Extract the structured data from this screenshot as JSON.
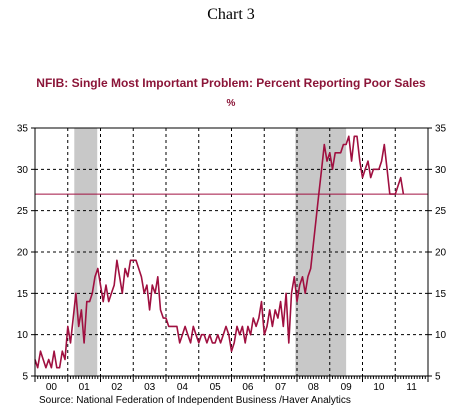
{
  "page": {
    "heading": "Chart 3"
  },
  "chart_data": {
    "type": "line",
    "title": "NFIB: Single Most Important Problem: Percent Reporting Poor Sales",
    "unit": "%",
    "source": "Source:  National Federation of Independent Business /Haver Analytics",
    "xlabel": "",
    "ylabel": "",
    "x_tick_labels": [
      "00",
      "01",
      "02",
      "03",
      "04",
      "05",
      "06",
      "07",
      "08",
      "09",
      "10",
      "11"
    ],
    "xlim": [
      2000.0,
      2012.0
    ],
    "ylim": [
      5,
      35
    ],
    "y_ticks": [
      5,
      10,
      15,
      20,
      25,
      30,
      35
    ],
    "grid": "dashed",
    "reference_line": 27,
    "recession_shading": [
      [
        2001.2,
        2001.9
      ],
      [
        2007.95,
        2009.5
      ]
    ],
    "colors": {
      "line": "#a01040",
      "shading": "#c8c8c8",
      "reference": "#a01040"
    },
    "series": [
      {
        "x": [
          2000.0,
          2000.083,
          2000.167,
          2000.25,
          2000.333,
          2000.417,
          2000.5,
          2000.583,
          2000.667,
          2000.75,
          2000.833,
          2000.917,
          2001.0,
          2001.083,
          2001.167,
          2001.25,
          2001.333,
          2001.417,
          2001.5,
          2001.583,
          2001.667,
          2001.75,
          2001.833,
          2001.917,
          2002.0,
          2002.083,
          2002.167,
          2002.25,
          2002.333,
          2002.417,
          2002.5,
          2002.583,
          2002.667,
          2002.75,
          2002.833,
          2002.917,
          2003.0,
          2003.083,
          2003.167,
          2003.25,
          2003.333,
          2003.417,
          2003.5,
          2003.583,
          2003.667,
          2003.75,
          2003.833,
          2003.917,
          2004.0,
          2004.083,
          2004.167,
          2004.25,
          2004.333,
          2004.417,
          2004.5,
          2004.583,
          2004.667,
          2004.75,
          2004.833,
          2004.917,
          2005.0,
          2005.083,
          2005.167,
          2005.25,
          2005.333,
          2005.417,
          2005.5,
          2005.583,
          2005.667,
          2005.75,
          2005.833,
          2005.917,
          2006.0,
          2006.083,
          2006.167,
          2006.25,
          2006.333,
          2006.417,
          2006.5,
          2006.583,
          2006.667,
          2006.75,
          2006.833,
          2006.917,
          2007.0,
          2007.083,
          2007.167,
          2007.25,
          2007.333,
          2007.417,
          2007.5,
          2007.583,
          2007.667,
          2007.75,
          2007.833,
          2007.917,
          2008.0,
          2008.083,
          2008.167,
          2008.25,
          2008.333,
          2008.417,
          2008.5,
          2008.583,
          2008.667,
          2008.75,
          2008.833,
          2008.917,
          2009.0,
          2009.083,
          2009.167,
          2009.25,
          2009.333,
          2009.417,
          2009.5,
          2009.583,
          2009.667,
          2009.75,
          2009.833,
          2009.917,
          2010.0,
          2010.083,
          2010.167,
          2010.25,
          2010.333,
          2010.417,
          2010.5,
          2010.583,
          2010.667,
          2010.75,
          2010.833,
          2010.917,
          2011.0,
          2011.083,
          2011.167,
          2011.25
        ],
        "values": [
          7,
          6,
          8,
          7,
          6,
          7,
          6,
          8,
          6,
          6,
          8,
          7,
          11,
          9,
          12,
          15,
          11,
          13,
          9,
          14,
          14,
          15,
          17,
          18,
          16,
          14,
          16,
          14,
          15,
          16,
          19,
          17,
          15,
          18,
          17,
          19,
          19,
          19,
          18,
          17,
          15,
          16,
          13,
          16,
          15,
          17,
          13,
          12,
          12,
          11,
          11,
          11,
          11,
          9,
          10,
          11,
          10,
          9,
          11,
          10,
          9,
          10,
          10,
          9,
          10,
          9,
          9,
          10,
          9,
          10,
          11,
          10,
          8,
          9,
          11,
          10,
          11,
          9,
          11,
          10,
          12,
          11,
          12,
          14,
          10,
          11,
          13,
          11,
          13,
          12,
          14,
          11,
          15,
          9,
          15,
          17,
          14,
          16,
          17,
          15,
          17,
          18,
          21,
          24,
          27,
          30,
          33,
          31,
          32,
          30,
          32,
          32,
          32,
          33,
          33,
          34,
          31,
          34,
          34,
          31,
          29,
          30,
          31,
          29,
          30,
          30,
          30,
          31,
          33,
          30,
          27,
          27,
          27,
          28,
          29,
          27
        ]
      }
    ]
  }
}
